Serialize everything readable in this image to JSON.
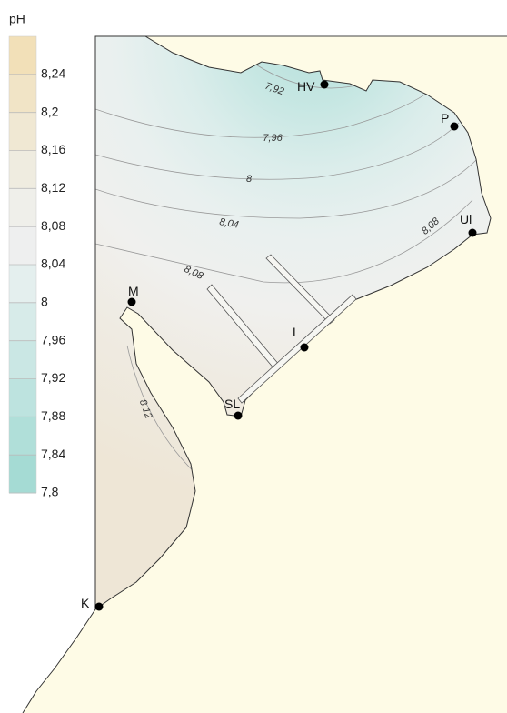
{
  "legend": {
    "title": "pH",
    "labels": [
      "8,24",
      "8,2",
      "8,16",
      "8,12",
      "8,08",
      "8,04",
      "8",
      "7,96",
      "7,92",
      "7,88",
      "7,84",
      "7,8"
    ]
  },
  "contour_labels": [
    "7,92",
    "7,96",
    "8",
    "8,04",
    "8,08",
    "8,08",
    "8,12"
  ],
  "stations": [
    "HV",
    "P",
    "Ul",
    "M",
    "L",
    "SL",
    "K"
  ]
}
